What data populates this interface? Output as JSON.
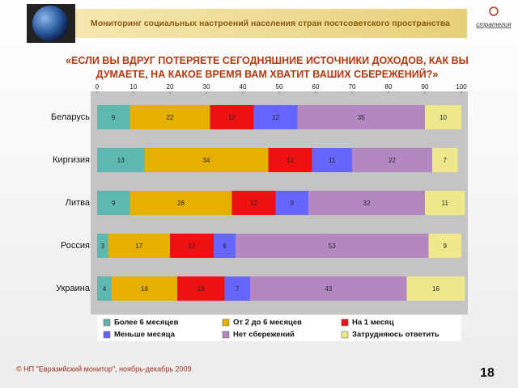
{
  "header": {
    "title": "Мониторинг социальных настроений населения стран постсоветского пространства",
    "logo": "стратегия"
  },
  "footer": "© НП \"Евразийский монитор\", ноябрь-декабрь 2009",
  "page_number": "18",
  "chart_data": {
    "type": "bar",
    "orientation": "horizontal",
    "stacked": true,
    "title": "«ЕСЛИ ВЫ ВДРУГ ПОТЕРЯЕТЕ СЕГОДНЯШНИЕ ИСТОЧНИКИ ДОХОДОВ, КАК ВЫ ДУМАЕТЕ, НА КАКОЕ ВРЕМЯ ВАМ ХВАТИТ ВАШИХ СБЕРЕЖЕНИЙ?»",
    "categories": [
      "Беларусь",
      "Киргизия",
      "Литва",
      "Россия",
      "Украина"
    ],
    "series": [
      {
        "name": "Более 6 месяцев",
        "color": "#5fb8b0",
        "values": [
          9,
          13,
          9,
          3,
          4
        ]
      },
      {
        "name": "От 2 до 6 месяцев",
        "color": "#e6b000",
        "values": [
          22,
          34,
          28,
          17,
          18
        ]
      },
      {
        "name": "На 1 месяц",
        "color": "#ee1111",
        "values": [
          12,
          12,
          12,
          12,
          13
        ]
      },
      {
        "name": "Меньше месяца",
        "color": "#6666ff",
        "values": [
          12,
          11,
          9,
          6,
          7
        ]
      },
      {
        "name": "Нет сбережений",
        "color": "#b587c2",
        "values": [
          35,
          22,
          32,
          53,
          43
        ]
      },
      {
        "name": "Затрудняюсь ответить",
        "color": "#eee88a",
        "values": [
          10,
          7,
          11,
          9,
          16
        ]
      }
    ],
    "xlim": [
      0,
      100
    ],
    "xticks": [
      0,
      10,
      20,
      30,
      40,
      50,
      60,
      70,
      80,
      90,
      100
    ],
    "grid": false
  }
}
